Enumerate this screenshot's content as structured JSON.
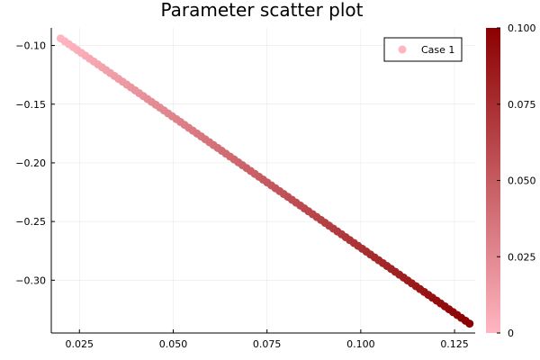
{
  "chart_data": {
    "type": "scatter",
    "title": "Parameter scatter plot",
    "xlabel": "",
    "ylabel": "",
    "xlim": [
      0.0175,
      0.1305
    ],
    "ylim": [
      -0.345,
      -0.085
    ],
    "x_ticks": [
      {
        "value": 0.025,
        "label": "0.025"
      },
      {
        "value": 0.05,
        "label": "0.050"
      },
      {
        "value": 0.075,
        "label": "0.075"
      },
      {
        "value": 0.1,
        "label": "0.100"
      },
      {
        "value": 0.125,
        "label": "0.125"
      }
    ],
    "y_ticks": [
      {
        "value": -0.1,
        "label": "−0.10"
      },
      {
        "value": -0.15,
        "label": "−0.15"
      },
      {
        "value": -0.2,
        "label": "−0.20"
      },
      {
        "value": -0.25,
        "label": "−0.25"
      },
      {
        "value": -0.3,
        "label": "−0.30"
      }
    ],
    "grid": true,
    "legend": {
      "position": "top-right",
      "entries": [
        "Case 1"
      ]
    },
    "series": [
      {
        "name": "Case 1",
        "x_range": [
          0.02,
          0.129
        ],
        "y_range": [
          -0.094,
          -0.337
        ],
        "color_range": [
          0,
          0.1
        ],
        "num_points": 100
      }
    ],
    "colorbar": {
      "range": [
        0,
        0.1
      ],
      "ticks": [
        {
          "value": 0,
          "label": "0"
        },
        {
          "value": 0.025,
          "label": "0.025"
        },
        {
          "value": 0.05,
          "label": "0.050"
        },
        {
          "value": 0.075,
          "label": "0.075"
        },
        {
          "value": 0.1,
          "label": "0.100"
        }
      ],
      "color_low": "#ffb6c1",
      "color_high": "#8b0000"
    }
  }
}
